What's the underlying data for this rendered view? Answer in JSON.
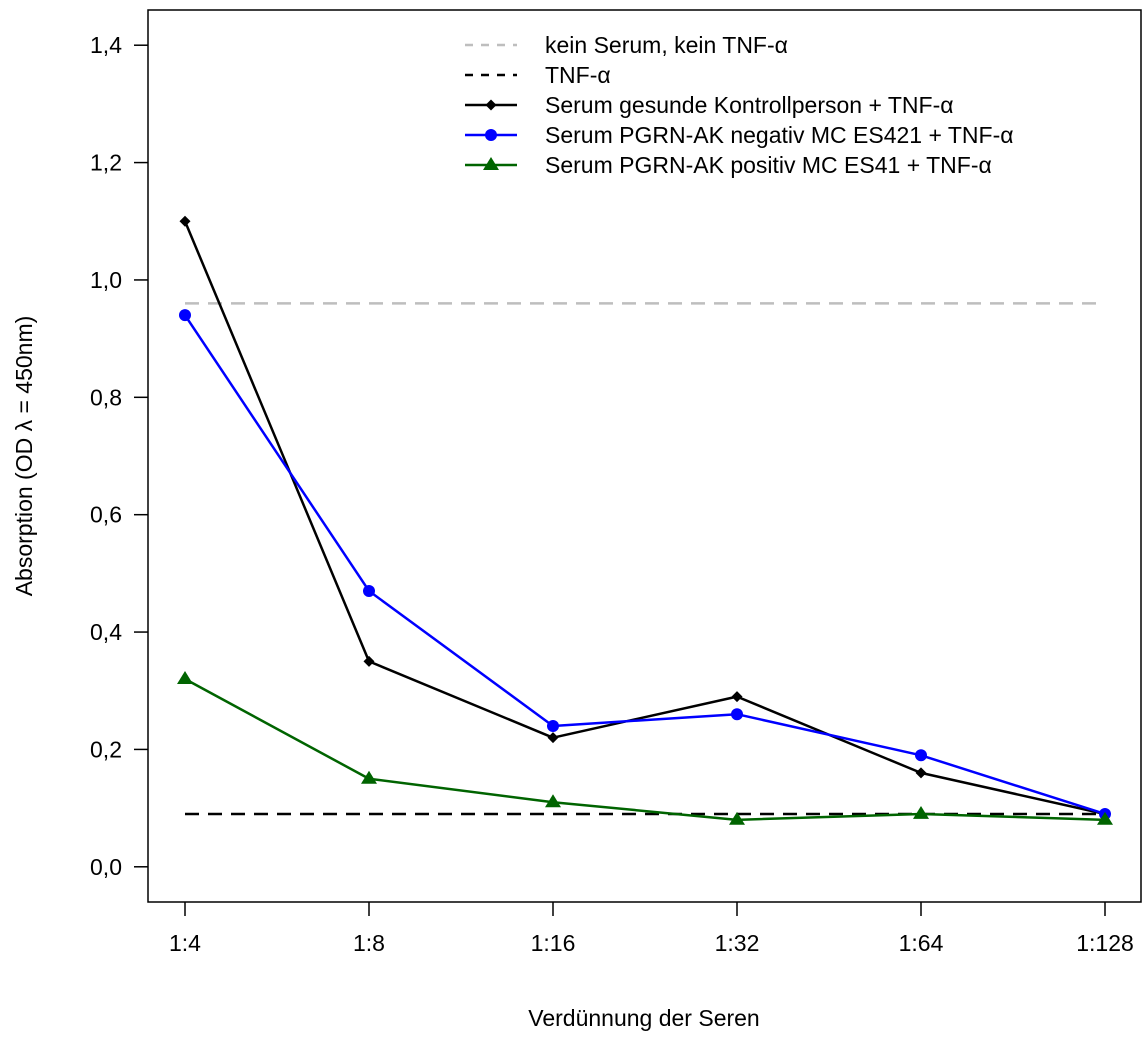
{
  "chart_data": {
    "type": "line",
    "xlabel": "Verdünnung der Seren",
    "ylabel": "Absorption (OD λ = 450nm)",
    "categories": [
      "1:4",
      "1:8",
      "1:16",
      "1:32",
      "1:64",
      "1:128"
    ],
    "ylim": [
      -0.06,
      1.46
    ],
    "yticks": [
      0.0,
      0.2,
      0.4,
      0.6,
      0.8,
      1.0,
      1.2,
      1.4
    ],
    "ytick_labels": [
      "0,0",
      "0,2",
      "0,4",
      "0,6",
      "0,8",
      "1,0",
      "1,2",
      "1,4"
    ],
    "grid": false,
    "legend_position": "top-right",
    "reference_lines": [
      {
        "name": "kein Serum, kein TNF-α",
        "value": 0.96,
        "color": "#bebebe",
        "style": "dashed"
      },
      {
        "name": "TNF-α",
        "value": 0.09,
        "color": "#000000",
        "style": "dashed"
      }
    ],
    "series": [
      {
        "name": "Serum gesunde Kontrollperson + TNF-α",
        "color": "#000000",
        "marker": "diamond",
        "values": [
          1.1,
          0.35,
          0.22,
          0.29,
          0.16,
          0.09
        ]
      },
      {
        "name": "Serum PGRN-AK negativ MC ES421 + TNF-α",
        "color": "#0000ff",
        "marker": "circle",
        "values": [
          0.94,
          0.47,
          0.24,
          0.26,
          0.19,
          0.09
        ]
      },
      {
        "name": "Serum PGRN-AK positiv MC ES41 + TNF-α",
        "color": "#006400",
        "marker": "triangle",
        "values": [
          0.32,
          0.15,
          0.11,
          0.08,
          0.09,
          0.08
        ]
      }
    ]
  }
}
